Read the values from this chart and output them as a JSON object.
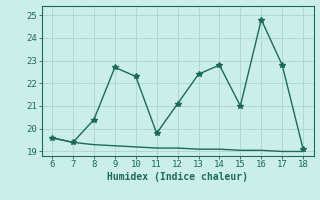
{
  "x_main": [
    6,
    7,
    8,
    9,
    10,
    11,
    12,
    13,
    14,
    15,
    16,
    17,
    18
  ],
  "y_main": [
    19.6,
    19.4,
    20.4,
    22.7,
    22.3,
    19.8,
    21.1,
    22.4,
    22.8,
    21.0,
    24.8,
    22.8,
    19.1
  ],
  "x_flat": [
    6,
    7,
    8,
    9,
    10,
    11,
    12,
    13,
    14,
    15,
    16,
    17,
    18
  ],
  "y_flat": [
    19.6,
    19.4,
    19.3,
    19.25,
    19.2,
    19.15,
    19.15,
    19.1,
    19.1,
    19.05,
    19.05,
    19.0,
    19.0
  ],
  "line_color": "#1a6b5a",
  "bg_color": "#cceee8",
  "grid_color": "#b0d8d0",
  "xlabel": "Humidex (Indice chaleur)",
  "xlim": [
    5.5,
    18.5
  ],
  "ylim": [
    18.8,
    25.4
  ],
  "xticks": [
    6,
    7,
    8,
    9,
    10,
    11,
    12,
    13,
    14,
    15,
    16,
    17,
    18
  ],
  "yticks": [
    19,
    20,
    21,
    22,
    23,
    24,
    25
  ],
  "xlabel_fontsize": 7,
  "tick_fontsize": 6.5,
  "marker": "*",
  "marker_size": 4,
  "line_width": 1.0
}
